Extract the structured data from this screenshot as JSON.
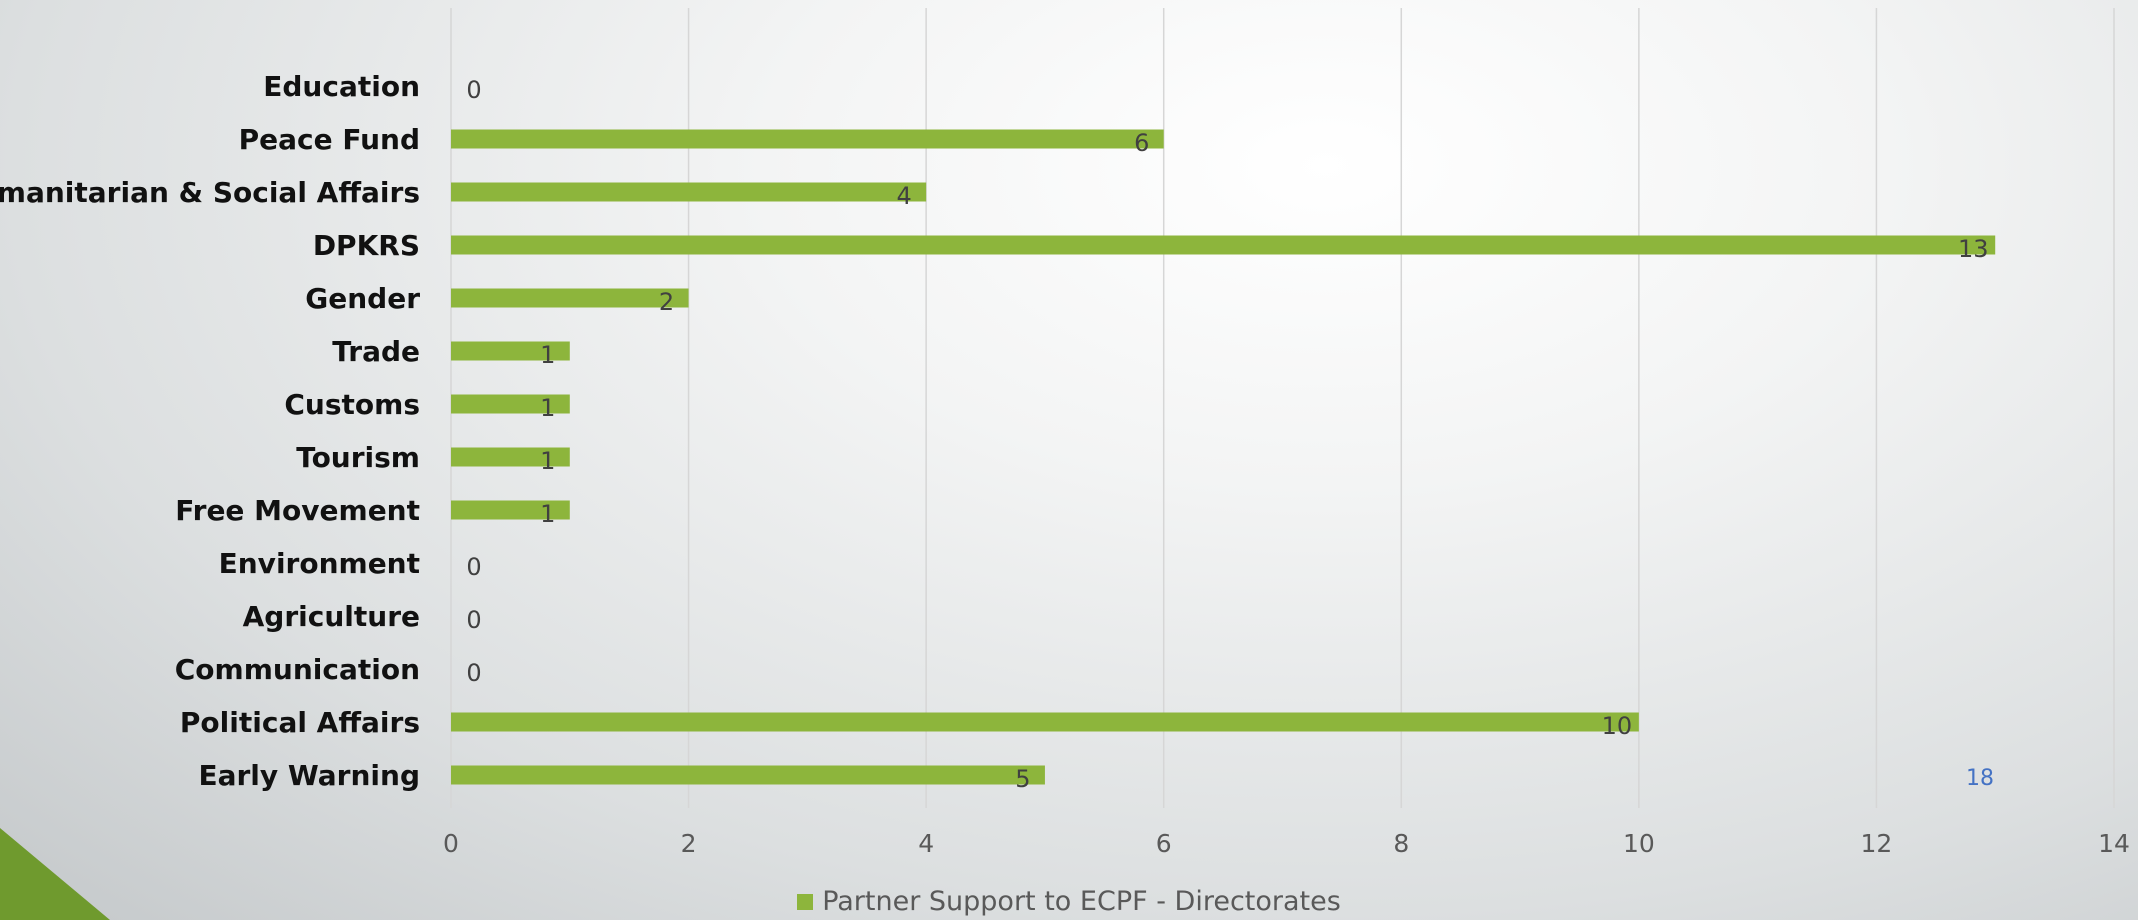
{
  "colors": {
    "bar": "#8db53c",
    "corner": "#6f9a2e",
    "grid": "#d6d6d6"
  },
  "page_number": "18",
  "chart_data": {
    "type": "bar",
    "orientation": "horizontal",
    "categories": [
      "Education",
      "Peace Fund",
      "Humanitarian & Social Affairs",
      "DPKRS",
      "Gender",
      "Trade",
      "Customs",
      "Tourism",
      "Free Movement",
      "Environment",
      "Agriculture",
      "Communication",
      "Political Affairs",
      "Early Warning"
    ],
    "series": [
      {
        "name": "Partner Support to ECPF - Directorates",
        "values": [
          0,
          6,
          4,
          13,
          2,
          1,
          1,
          1,
          1,
          0,
          0,
          0,
          10,
          5
        ]
      }
    ],
    "xlim": [
      0,
      14
    ],
    "xticks": [
      0,
      2,
      4,
      6,
      8,
      10,
      12,
      14
    ],
    "grid": "vertical",
    "legend": "bottom",
    "data_labels": true
  }
}
